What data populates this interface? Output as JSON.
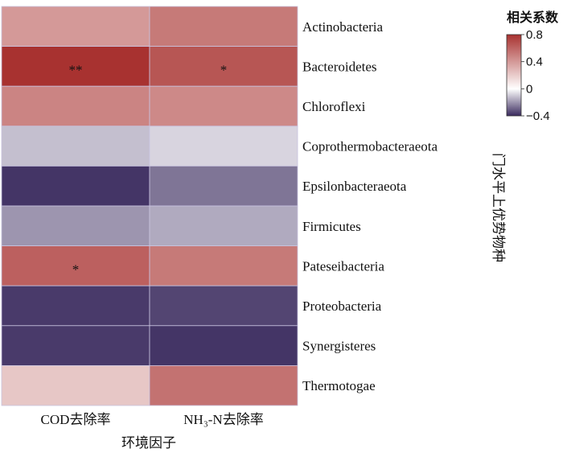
{
  "chart_data": {
    "type": "heatmap",
    "rows": [
      "Actinobacteria",
      "Bacteroidetes",
      "Chloroflexi",
      "Coprothermobacteraeota",
      "Epsilonbacteraeota",
      "Firmicutes",
      "Pateseibacteria",
      "Proteobacteria",
      "Synergisteres",
      "Thermotogae"
    ],
    "columns": [
      "COD去除率",
      "NH₃-N去除率"
    ],
    "values": [
      [
        0.4,
        0.52
      ],
      [
        0.82,
        0.66
      ],
      [
        0.48,
        0.46
      ],
      [
        -0.12,
        -0.08
      ],
      [
        -0.38,
        -0.26
      ],
      [
        -0.2,
        -0.16
      ],
      [
        0.62,
        0.52
      ],
      [
        -0.37,
        -0.35
      ],
      [
        -0.37,
        -0.38
      ],
      [
        0.22,
        0.55
      ]
    ],
    "significance": [
      [
        "",
        ""
      ],
      [
        "**",
        "*"
      ],
      [
        "",
        ""
      ],
      [
        "",
        ""
      ],
      [
        "",
        ""
      ],
      [
        "",
        ""
      ],
      [
        "*",
        ""
      ],
      [
        "",
        ""
      ],
      [
        "",
        ""
      ],
      [
        "",
        ""
      ]
    ],
    "xlabel": "环境因子",
    "ylabel": "门水平上优势物种",
    "legend_title": "相关系数",
    "legend_ticks": [
      "0.8",
      "0.4",
      "0",
      "−0.4"
    ],
    "legend_tick_values": [
      0.8,
      0.4,
      0,
      -0.4
    ],
    "vmin": -0.4,
    "vmax": 0.8,
    "colors": {
      "low": "#3a2a5e",
      "mid": "#ffffff",
      "high": "#a83230",
      "cell_border": "#c9c4e0"
    }
  }
}
